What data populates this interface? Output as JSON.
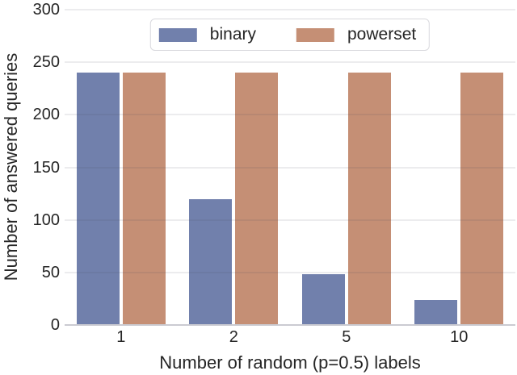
{
  "chart_data": {
    "type": "bar",
    "title": "",
    "xlabel": "Number of random (p=0.5) labels",
    "ylabel": "Number of answered queries",
    "categories": [
      "1",
      "2",
      "5",
      "10"
    ],
    "series": [
      {
        "name": "binary",
        "color": "#7180AC",
        "values": [
          240,
          120,
          48,
          24
        ]
      },
      {
        "name": "powerset",
        "color": "#C58F75",
        "values": [
          240,
          240,
          240,
          240
        ]
      }
    ],
    "ylim": [
      0,
      300
    ],
    "yticks": [
      0,
      50,
      100,
      150,
      200,
      250,
      300
    ],
    "grid": "horizontal",
    "legend_position": "upper center",
    "background": "#ffffff",
    "gridline_color": "#e8e8ec",
    "text_color": "#262626"
  }
}
